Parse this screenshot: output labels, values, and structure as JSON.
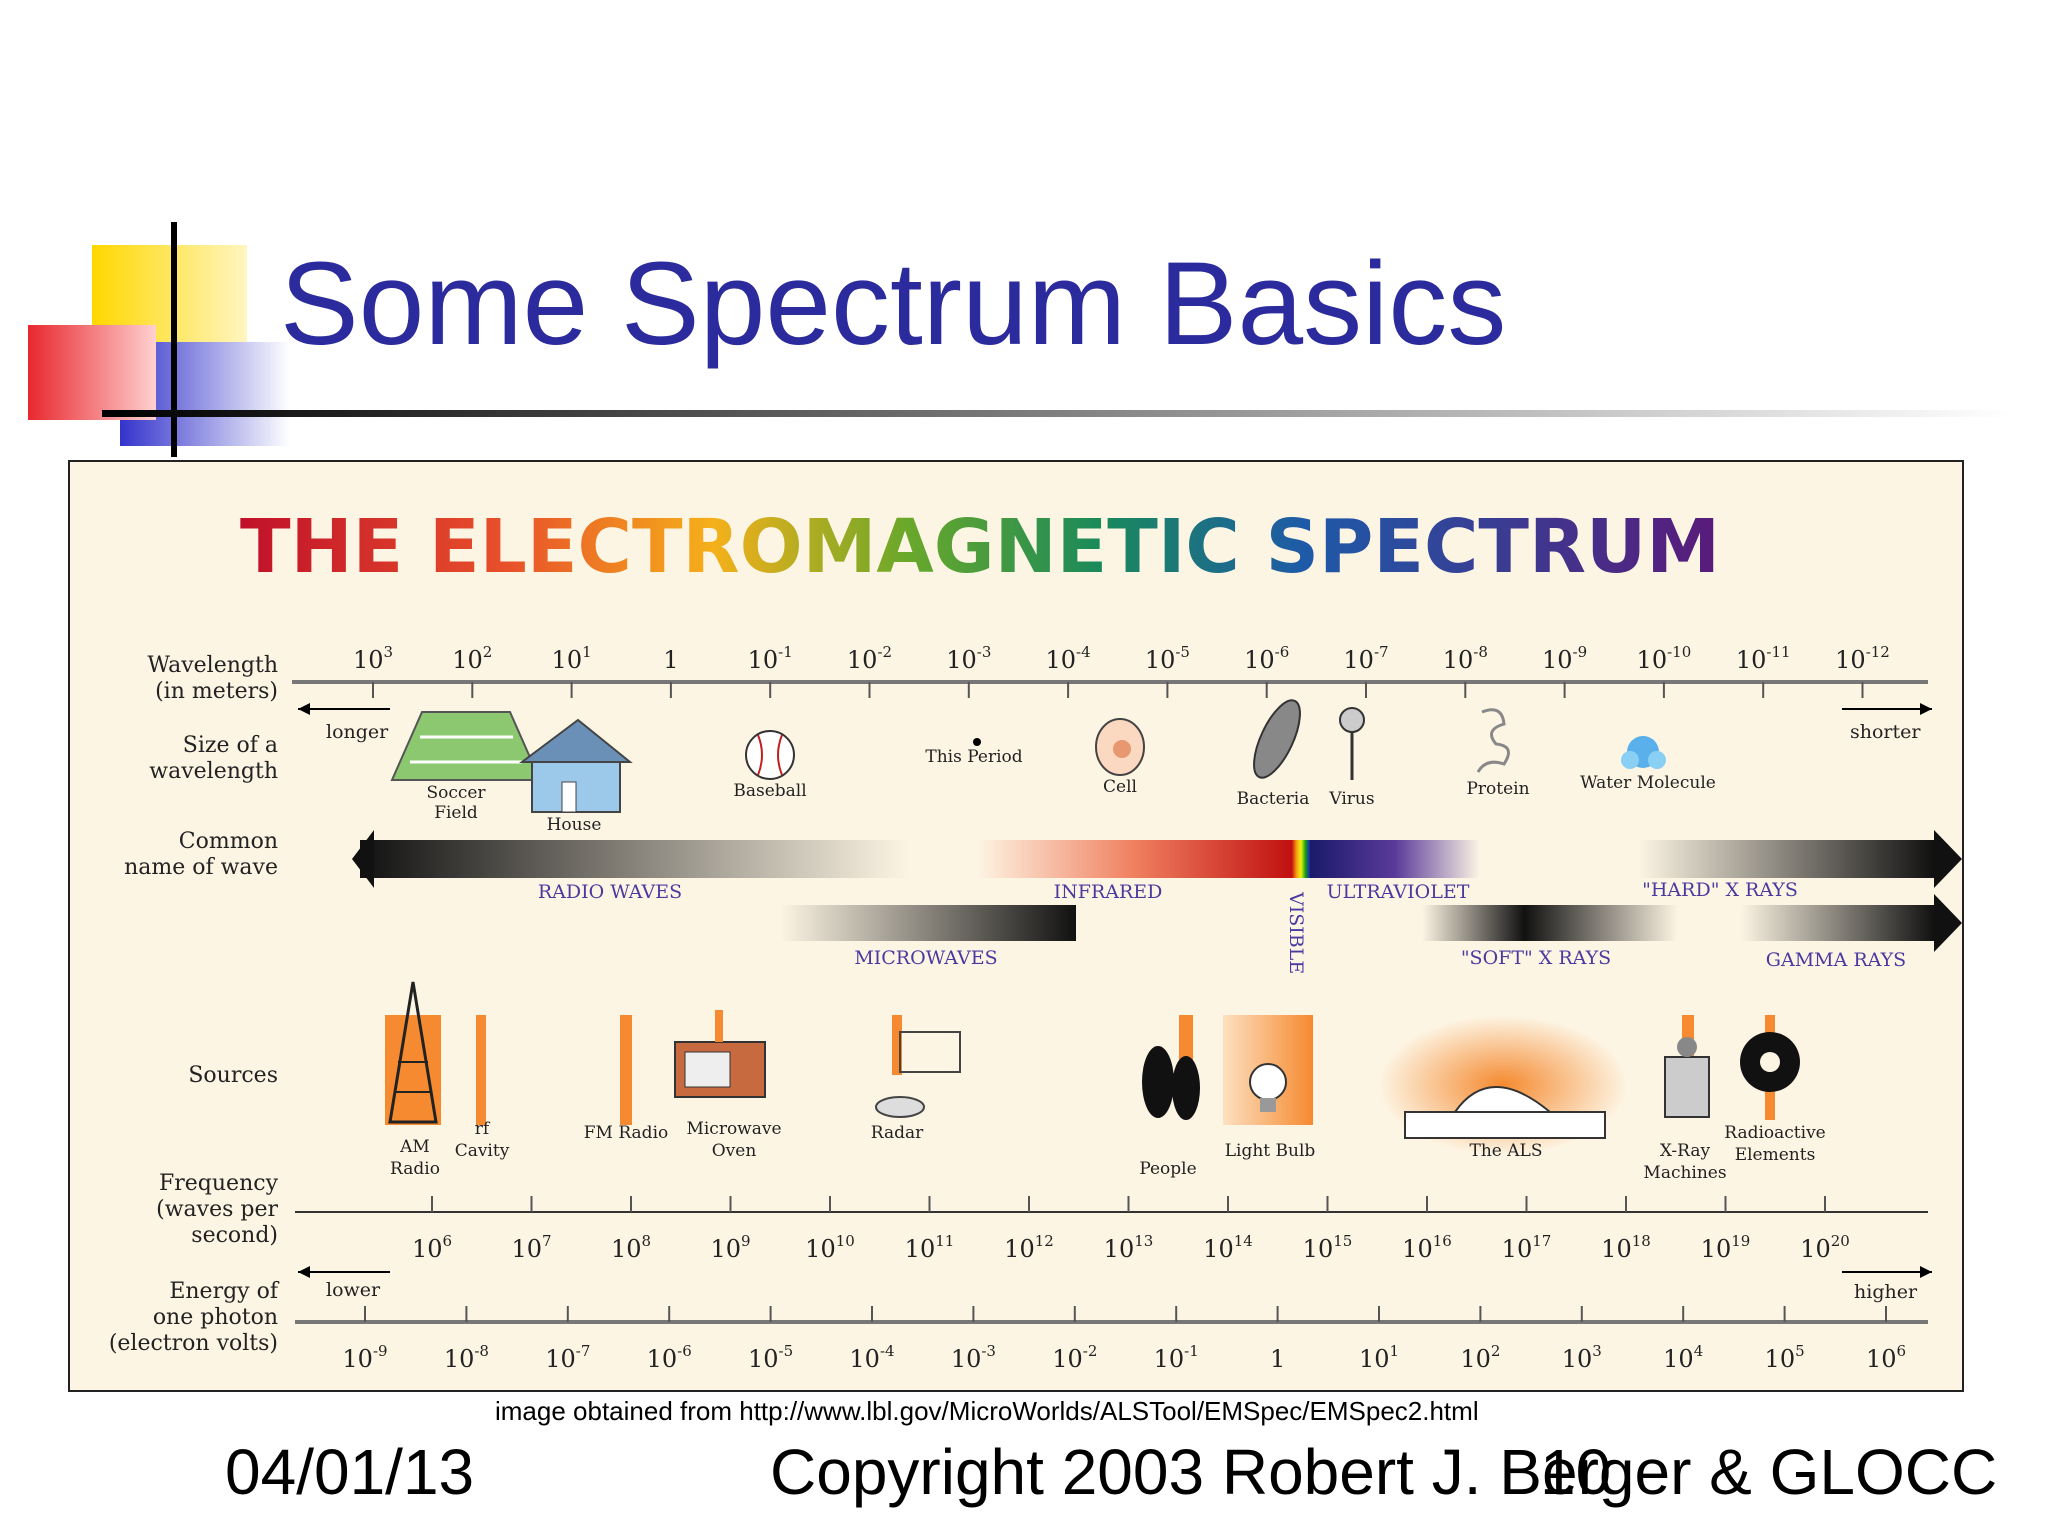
{
  "slide": {
    "title": "Some Spectrum Basics",
    "credit": "image obtained from http://www.lbl.gov/MicroWorlds/ALSTool/EMSpec/EMSpec2.html",
    "footer_date": "04/01/13",
    "footer_copyright": "Copyright 2003 Robert J. Berger & GLOCC",
    "page_number": "10",
    "colors": {
      "title": "#2b2b9e",
      "panel_bg": "#fdf5e4",
      "accent_blue": "#3333cc",
      "accent_yellow": "#ffd700",
      "accent_red": "#e8282e"
    }
  },
  "figure": {
    "title": "THE ELECTROMAGNETIC SPECTRUM",
    "rows": {
      "wavelength": {
        "label_1": "Wavelength",
        "label_2": "(in meters)"
      },
      "size": {
        "label_1": "Size of a",
        "label_2": "wavelength"
      },
      "common": {
        "label_1": "Common",
        "label_2": "name of wave"
      },
      "sources": {
        "label": "Sources"
      },
      "frequency": {
        "label_1": "Frequency",
        "label_2": "(waves per",
        "label_3": "second)"
      },
      "energy": {
        "label_1": "Energy of",
        "label_2": "one photon",
        "label_3": "(electron volts)"
      }
    },
    "wavelength_ticks": [
      {
        "b": "10",
        "e": "3"
      },
      {
        "b": "10",
        "e": "2"
      },
      {
        "b": "10",
        "e": "1"
      },
      {
        "b": "1",
        "e": ""
      },
      {
        "b": "10",
        "e": "-1"
      },
      {
        "b": "10",
        "e": "-2"
      },
      {
        "b": "10",
        "e": "-3"
      },
      {
        "b": "10",
        "e": "-4"
      },
      {
        "b": "10",
        "e": "-5"
      },
      {
        "b": "10",
        "e": "-6"
      },
      {
        "b": "10",
        "e": "-7"
      },
      {
        "b": "10",
        "e": "-8"
      },
      {
        "b": "10",
        "e": "-9"
      },
      {
        "b": "10",
        "e": "-10"
      },
      {
        "b": "10",
        "e": "-11"
      },
      {
        "b": "10",
        "e": "-12"
      }
    ],
    "frequency_ticks": [
      {
        "b": "10",
        "e": "6"
      },
      {
        "b": "10",
        "e": "7"
      },
      {
        "b": "10",
        "e": "8"
      },
      {
        "b": "10",
        "e": "9"
      },
      {
        "b": "10",
        "e": "10"
      },
      {
        "b": "10",
        "e": "11"
      },
      {
        "b": "10",
        "e": "12"
      },
      {
        "b": "10",
        "e": "13"
      },
      {
        "b": "10",
        "e": "14"
      },
      {
        "b": "10",
        "e": "15"
      },
      {
        "b": "10",
        "e": "16"
      },
      {
        "b": "10",
        "e": "17"
      },
      {
        "b": "10",
        "e": "18"
      },
      {
        "b": "10",
        "e": "19"
      },
      {
        "b": "10",
        "e": "20"
      }
    ],
    "energy_ticks": [
      {
        "b": "10",
        "e": "-9"
      },
      {
        "b": "10",
        "e": "-8"
      },
      {
        "b": "10",
        "e": "-7"
      },
      {
        "b": "10",
        "e": "-6"
      },
      {
        "b": "10",
        "e": "-5"
      },
      {
        "b": "10",
        "e": "-4"
      },
      {
        "b": "10",
        "e": "-3"
      },
      {
        "b": "10",
        "e": "-2"
      },
      {
        "b": "10",
        "e": "-1"
      },
      {
        "b": "1",
        "e": ""
      },
      {
        "b": "10",
        "e": "1"
      },
      {
        "b": "10",
        "e": "2"
      },
      {
        "b": "10",
        "e": "3"
      },
      {
        "b": "10",
        "e": "4"
      },
      {
        "b": "10",
        "e": "5"
      },
      {
        "b": "10",
        "e": "6"
      }
    ],
    "directions": {
      "longer": "longer",
      "shorter": "shorter",
      "lower": "lower",
      "higher": "higher"
    },
    "size_objects": {
      "soccer_1": "Soccer",
      "soccer_2": "Field",
      "house": "House",
      "baseball": "Baseball",
      "period": "This Period",
      "cell": "Cell",
      "bacteria": "Bacteria",
      "virus": "Virus",
      "protein": "Protein",
      "water": "Water Molecule"
    },
    "wave_names": {
      "radio": "RADIO WAVES",
      "infrared": "INFRARED",
      "visible": "VISIBLE",
      "ultraviolet": "ULTRAVIOLET",
      "hard_xray": "\"HARD\" X RAYS",
      "microwaves": "MICROWAVES",
      "soft_xray": "\"SOFT\" X RAYS",
      "gamma": "GAMMA RAYS"
    },
    "sources": {
      "am_1": "AM",
      "am_2": "Radio",
      "rf_1": "rf",
      "rf_2": "Cavity",
      "fm": "FM Radio",
      "micro_1": "Microwave",
      "micro_2": "Oven",
      "radar": "Radar",
      "people": "People",
      "bulb": "Light Bulb",
      "als": "The ALS",
      "xray_1": "X-Ray",
      "xray_2": "Machines",
      "radio_1": "Radioactive",
      "radio_2": "Elements"
    }
  }
}
